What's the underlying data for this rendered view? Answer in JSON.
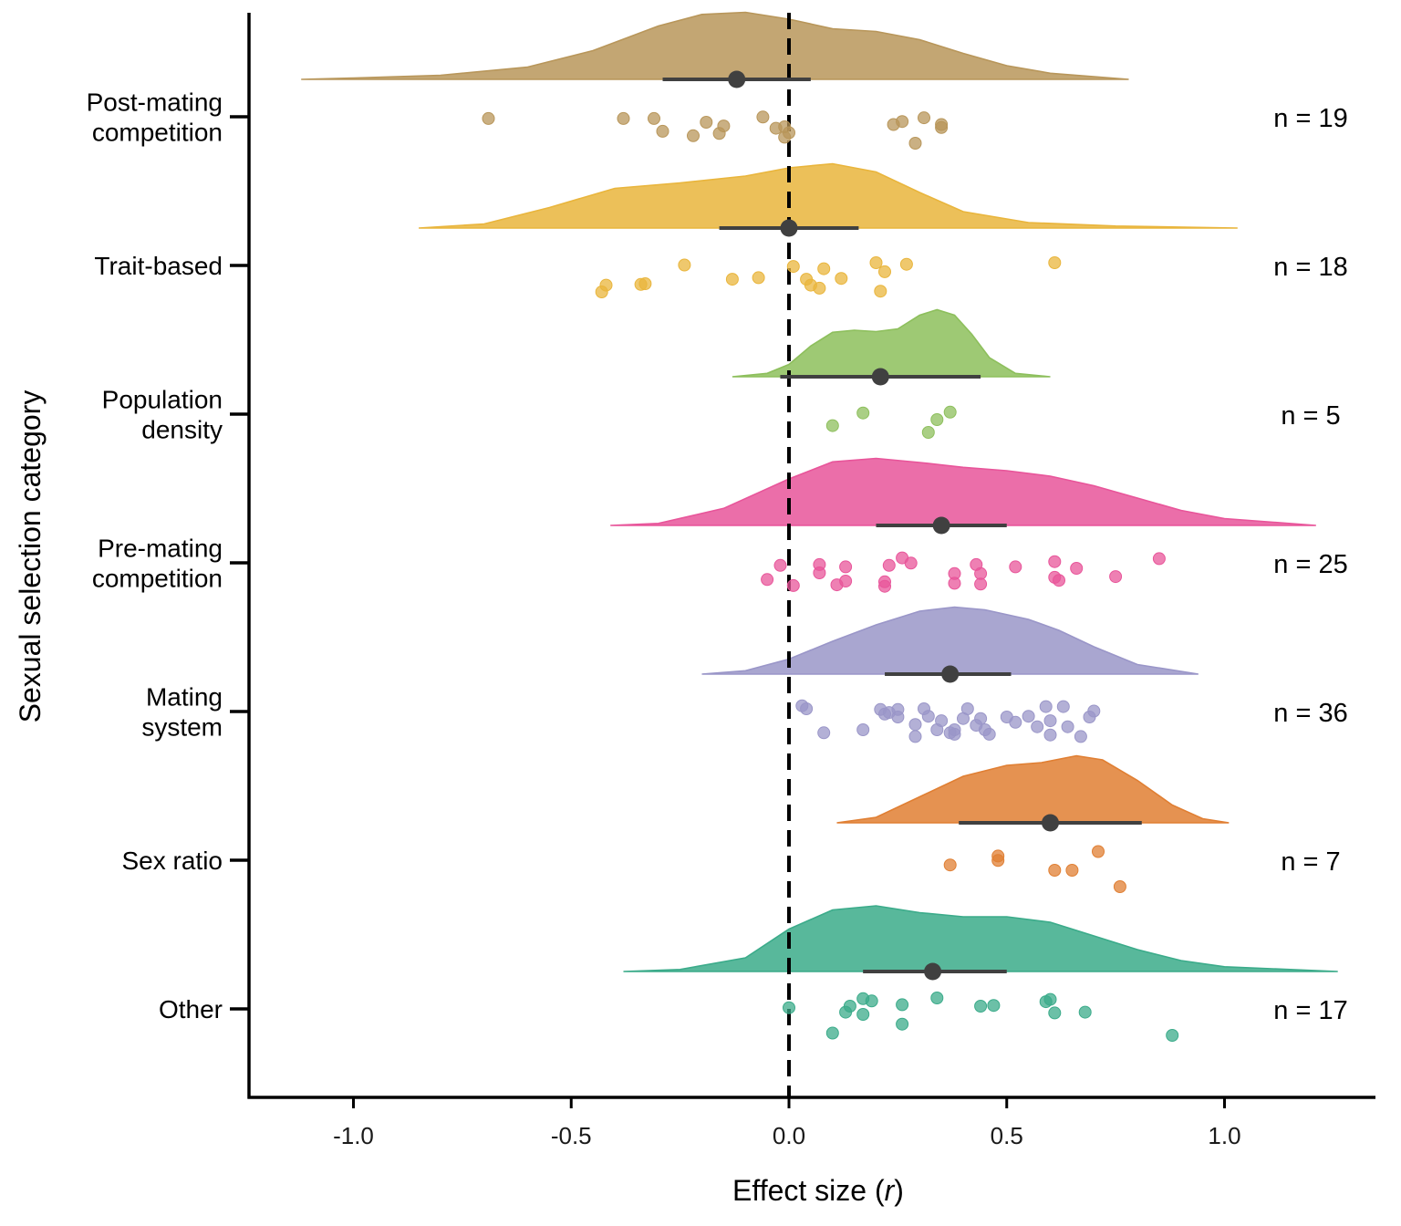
{
  "chart_data": {
    "type": "raincloud",
    "xlabel": "Effect size",
    "xlabel_var": "r",
    "ylabel": "Sexual selection category",
    "xlim": [
      -1.25,
      1.35
    ],
    "xticks": [
      -1.0,
      -0.5,
      0.0,
      0.5,
      1.0
    ],
    "xtick_labels": [
      "-1.0",
      "-0.5",
      "0.0",
      "0.5",
      "1.0"
    ],
    "reference_line": 0.0,
    "categories": [
      {
        "label_lines": [
          "Post-mating",
          "competition"
        ],
        "n_label": "n = 19",
        "color": "#B8965A",
        "mean": -0.12,
        "ci": [
          -0.29,
          0.05
        ],
        "density_range": [
          -1.12,
          0.78
        ],
        "density": [
          [
            -1.12,
            0.0
          ],
          [
            -1.0,
            0.02
          ],
          [
            -0.8,
            0.06
          ],
          [
            -0.6,
            0.18
          ],
          [
            -0.45,
            0.42
          ],
          [
            -0.3,
            0.78
          ],
          [
            -0.2,
            0.95
          ],
          [
            -0.1,
            0.98
          ],
          [
            0.0,
            0.88
          ],
          [
            0.1,
            0.74
          ],
          [
            0.2,
            0.7
          ],
          [
            0.3,
            0.58
          ],
          [
            0.4,
            0.38
          ],
          [
            0.5,
            0.2
          ],
          [
            0.6,
            0.09
          ],
          [
            0.78,
            0.0
          ]
        ],
        "points": [
          [
            -0.69,
            0.34
          ],
          [
            -0.38,
            0.34
          ],
          [
            -0.31,
            0.34
          ],
          [
            -0.29,
            0.68
          ],
          [
            -0.19,
            0.44
          ],
          [
            -0.22,
            0.8
          ],
          [
            -0.15,
            0.54
          ],
          [
            -0.16,
            0.74
          ],
          [
            -0.06,
            0.3
          ],
          [
            -0.03,
            0.6
          ],
          [
            -0.01,
            0.56
          ],
          [
            0.0,
            0.72
          ],
          [
            -0.01,
            0.84
          ],
          [
            0.24,
            0.5
          ],
          [
            0.26,
            0.42
          ],
          [
            0.31,
            0.32
          ],
          [
            0.35,
            0.58
          ],
          [
            0.35,
            0.5
          ],
          [
            0.29,
            1.0
          ]
        ]
      },
      {
        "label_lines": [
          "Trait-based"
        ],
        "n_label": "n = 18",
        "color": "#E9B53C",
        "mean": 0.0,
        "ci": [
          -0.16,
          0.16
        ],
        "density_range": [
          -0.85,
          1.03
        ],
        "density": [
          [
            -0.85,
            0.0
          ],
          [
            -0.7,
            0.06
          ],
          [
            -0.55,
            0.3
          ],
          [
            -0.4,
            0.58
          ],
          [
            -0.25,
            0.66
          ],
          [
            -0.1,
            0.76
          ],
          [
            0.0,
            0.88
          ],
          [
            0.1,
            0.94
          ],
          [
            0.2,
            0.82
          ],
          [
            0.3,
            0.52
          ],
          [
            0.4,
            0.24
          ],
          [
            0.55,
            0.08
          ],
          [
            0.75,
            0.03
          ],
          [
            1.03,
            0.0
          ]
        ],
        "points": [
          [
            -0.43,
            1.0
          ],
          [
            -0.42,
            0.82
          ],
          [
            -0.34,
            0.8
          ],
          [
            -0.33,
            0.78
          ],
          [
            -0.24,
            0.28
          ],
          [
            -0.13,
            0.66
          ],
          [
            -0.07,
            0.62
          ],
          [
            0.01,
            0.32
          ],
          [
            0.04,
            0.66
          ],
          [
            0.05,
            0.82
          ],
          [
            0.08,
            0.38
          ],
          [
            0.07,
            0.9
          ],
          [
            0.12,
            0.64
          ],
          [
            0.2,
            0.22
          ],
          [
            0.22,
            0.46
          ],
          [
            0.21,
            0.98
          ],
          [
            0.27,
            0.26
          ],
          [
            0.61,
            0.22
          ]
        ]
      },
      {
        "label_lines": [
          "Population",
          "density"
        ],
        "n_label": "n = 5",
        "color": "#8DBF5C",
        "mean": 0.21,
        "ci": [
          -0.02,
          0.44
        ],
        "density_range": [
          -0.13,
          0.6
        ],
        "density": [
          [
            -0.13,
            0.0
          ],
          [
            -0.05,
            0.05
          ],
          [
            0.0,
            0.18
          ],
          [
            0.05,
            0.45
          ],
          [
            0.1,
            0.65
          ],
          [
            0.15,
            0.68
          ],
          [
            0.2,
            0.66
          ],
          [
            0.25,
            0.7
          ],
          [
            0.3,
            0.9
          ],
          [
            0.34,
            0.98
          ],
          [
            0.38,
            0.9
          ],
          [
            0.42,
            0.62
          ],
          [
            0.46,
            0.28
          ],
          [
            0.52,
            0.05
          ],
          [
            0.6,
            0.0
          ]
        ],
        "points": [
          [
            0.1,
            0.6
          ],
          [
            0.17,
            0.26
          ],
          [
            0.32,
            0.78
          ],
          [
            0.34,
            0.44
          ],
          [
            0.37,
            0.24
          ]
        ]
      },
      {
        "label_lines": [
          "Pre-mating",
          "competition"
        ],
        "n_label": "n = 25",
        "color": "#E8559A",
        "mean": 0.35,
        "ci": [
          0.2,
          0.5
        ],
        "density_range": [
          -0.41,
          1.21
        ],
        "density": [
          [
            -0.41,
            0.0
          ],
          [
            -0.3,
            0.03
          ],
          [
            -0.15,
            0.25
          ],
          [
            0.0,
            0.68
          ],
          [
            0.1,
            0.93
          ],
          [
            0.2,
            0.98
          ],
          [
            0.3,
            0.92
          ],
          [
            0.4,
            0.85
          ],
          [
            0.5,
            0.8
          ],
          [
            0.6,
            0.72
          ],
          [
            0.7,
            0.58
          ],
          [
            0.8,
            0.4
          ],
          [
            0.9,
            0.22
          ],
          [
            1.0,
            0.1
          ],
          [
            1.21,
            0.0
          ]
        ],
        "points": [
          [
            -0.02,
            0.36
          ],
          [
            -0.05,
            0.74
          ],
          [
            0.01,
            0.9
          ],
          [
            0.07,
            0.34
          ],
          [
            0.07,
            0.56
          ],
          [
            0.13,
            0.4
          ],
          [
            0.13,
            0.78
          ],
          [
            0.11,
            0.88
          ],
          [
            0.23,
            0.36
          ],
          [
            0.26,
            0.16
          ],
          [
            0.22,
            0.8
          ],
          [
            0.22,
            0.92
          ],
          [
            0.28,
            0.3
          ],
          [
            0.38,
            0.58
          ],
          [
            0.38,
            0.84
          ],
          [
            0.43,
            0.34
          ],
          [
            0.44,
            0.58
          ],
          [
            0.44,
            0.86
          ],
          [
            0.52,
            0.4
          ],
          [
            0.61,
            0.26
          ],
          [
            0.61,
            0.68
          ],
          [
            0.62,
            0.76
          ],
          [
            0.66,
            0.44
          ],
          [
            0.75,
            0.66
          ],
          [
            0.85,
            0.18
          ]
        ]
      },
      {
        "label_lines": [
          "Mating",
          "system"
        ],
        "n_label": "n = 36",
        "color": "#9A96C8",
        "mean": 0.37,
        "ci": [
          0.22,
          0.51
        ],
        "density_range": [
          -0.2,
          0.94
        ],
        "density": [
          [
            -0.2,
            0.0
          ],
          [
            -0.1,
            0.05
          ],
          [
            0.0,
            0.22
          ],
          [
            0.1,
            0.48
          ],
          [
            0.2,
            0.72
          ],
          [
            0.3,
            0.92
          ],
          [
            0.38,
            0.98
          ],
          [
            0.45,
            0.94
          ],
          [
            0.55,
            0.8
          ],
          [
            0.62,
            0.64
          ],
          [
            0.7,
            0.4
          ],
          [
            0.8,
            0.14
          ],
          [
            0.94,
            0.0
          ]
        ],
        "points": [
          [
            0.03,
            0.14
          ],
          [
            0.04,
            0.22
          ],
          [
            0.08,
            0.86
          ],
          [
            0.17,
            0.78
          ],
          [
            0.21,
            0.24
          ],
          [
            0.22,
            0.36
          ],
          [
            0.23,
            0.32
          ],
          [
            0.25,
            0.24
          ],
          [
            0.25,
            0.44
          ],
          [
            0.29,
            0.96
          ],
          [
            0.31,
            0.22
          ],
          [
            0.32,
            0.42
          ],
          [
            0.29,
            0.64
          ],
          [
            0.34,
            0.78
          ],
          [
            0.35,
            0.54
          ],
          [
            0.37,
            0.86
          ],
          [
            0.38,
            0.78
          ],
          [
            0.38,
            0.9
          ],
          [
            0.41,
            0.22
          ],
          [
            0.4,
            0.48
          ],
          [
            0.43,
            0.66
          ],
          [
            0.44,
            0.48
          ],
          [
            0.45,
            0.78
          ],
          [
            0.46,
            0.9
          ],
          [
            0.5,
            0.44
          ],
          [
            0.52,
            0.58
          ],
          [
            0.55,
            0.42
          ],
          [
            0.57,
            0.7
          ],
          [
            0.59,
            0.16
          ],
          [
            0.6,
            0.54
          ],
          [
            0.6,
            0.92
          ],
          [
            0.63,
            0.16
          ],
          [
            0.64,
            0.7
          ],
          [
            0.67,
            0.96
          ],
          [
            0.69,
            0.44
          ],
          [
            0.7,
            0.28
          ]
        ]
      },
      {
        "label_lines": [
          "Sex ratio"
        ],
        "n_label": "n = 7",
        "color": "#E07F33",
        "mean": 0.6,
        "ci": [
          0.39,
          0.81
        ],
        "density_range": [
          0.11,
          1.01
        ],
        "density": [
          [
            0.11,
            0.0
          ],
          [
            0.2,
            0.08
          ],
          [
            0.3,
            0.38
          ],
          [
            0.4,
            0.68
          ],
          [
            0.5,
            0.84
          ],
          [
            0.58,
            0.88
          ],
          [
            0.66,
            0.98
          ],
          [
            0.72,
            0.92
          ],
          [
            0.8,
            0.62
          ],
          [
            0.88,
            0.26
          ],
          [
            0.95,
            0.06
          ],
          [
            1.01,
            0.0
          ]
        ],
        "points": [
          [
            0.37,
            0.42
          ],
          [
            0.48,
            0.18
          ],
          [
            0.48,
            0.3
          ],
          [
            0.61,
            0.56
          ],
          [
            0.65,
            0.56
          ],
          [
            0.71,
            0.06
          ],
          [
            0.76,
            1.0
          ]
        ]
      },
      {
        "label_lines": [
          "Other"
        ],
        "n_label": "n = 17",
        "color": "#3BAB8A",
        "mean": 0.33,
        "ci": [
          0.17,
          0.5
        ],
        "density_range": [
          -0.38,
          1.26
        ],
        "density": [
          [
            -0.38,
            0.0
          ],
          [
            -0.25,
            0.03
          ],
          [
            -0.1,
            0.2
          ],
          [
            0.0,
            0.62
          ],
          [
            0.1,
            0.9
          ],
          [
            0.2,
            0.96
          ],
          [
            0.3,
            0.86
          ],
          [
            0.4,
            0.8
          ],
          [
            0.5,
            0.8
          ],
          [
            0.6,
            0.72
          ],
          [
            0.7,
            0.52
          ],
          [
            0.8,
            0.32
          ],
          [
            0.9,
            0.16
          ],
          [
            1.0,
            0.07
          ],
          [
            1.26,
            0.0
          ]
        ],
        "points": [
          [
            0.0,
            0.26
          ],
          [
            0.1,
            0.94
          ],
          [
            0.13,
            0.38
          ],
          [
            0.14,
            0.22
          ],
          [
            0.17,
            0.02
          ],
          [
            0.17,
            0.44
          ],
          [
            0.19,
            0.08
          ],
          [
            0.26,
            0.18
          ],
          [
            0.26,
            0.7
          ],
          [
            0.34,
            0.0
          ],
          [
            0.44,
            0.22
          ],
          [
            0.47,
            0.2
          ],
          [
            0.59,
            0.1
          ],
          [
            0.6,
            0.04
          ],
          [
            0.61,
            0.4
          ],
          [
            0.68,
            0.38
          ],
          [
            0.88,
            1.0
          ]
        ]
      }
    ]
  }
}
